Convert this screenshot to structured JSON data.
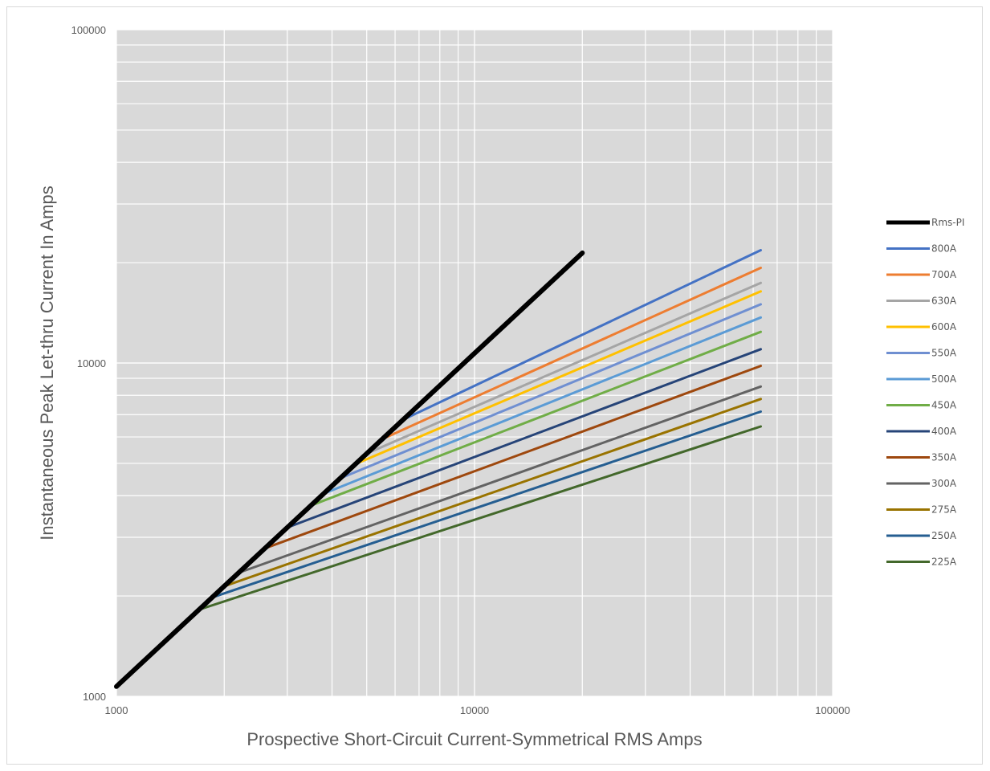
{
  "chart_data": {
    "type": "line",
    "title": "",
    "xlabel": "Prospective Short-Circuit Current-Symmetrical RMS Amps",
    "ylabel": "Instantaneous Peak Let-thru Current In Amps",
    "xscale": "log",
    "yscale": "log",
    "xlim": [
      1000,
      100000
    ],
    "ylim": [
      1000,
      100000
    ],
    "x_ticks": [
      "1000",
      "10000",
      "100000"
    ],
    "y_ticks": [
      "1000",
      "10000",
      "100000"
    ],
    "grid": true,
    "legend_position": "right",
    "plot_background": "#d9d9d9",
    "series": [
      {
        "name": "Rms-PI",
        "color": "#000000",
        "width": 6,
        "points": [
          [
            1000,
            1070
          ],
          [
            20000,
            21400
          ]
        ]
      },
      {
        "name": "800A",
        "color": "#4472c4",
        "width": 3,
        "points": [
          [
            6300,
            6750
          ],
          [
            63000,
            21800
          ]
        ]
      },
      {
        "name": "700A",
        "color": "#ed7d31",
        "width": 3,
        "points": [
          [
            5500,
            5900
          ],
          [
            63000,
            19300
          ]
        ]
      },
      {
        "name": "630A",
        "color": "#a5a5a5",
        "width": 3,
        "points": [
          [
            5000,
            5350
          ],
          [
            63000,
            17400
          ]
        ]
      },
      {
        "name": "600A",
        "color": "#ffc000",
        "width": 3,
        "points": [
          [
            4700,
            5000
          ],
          [
            63000,
            16400
          ]
        ]
      },
      {
        "name": "550A",
        "color": "#6f8fd1",
        "width": 3,
        "points": [
          [
            4200,
            4500
          ],
          [
            63000,
            15000
          ]
        ]
      },
      {
        "name": "500A",
        "color": "#5b9bd5",
        "width": 3,
        "points": [
          [
            3800,
            4060
          ],
          [
            63000,
            13700
          ]
        ]
      },
      {
        "name": "450A",
        "color": "#70ad47",
        "width": 3,
        "points": [
          [
            3500,
            3740
          ],
          [
            63000,
            12400
          ]
        ]
      },
      {
        "name": "400A",
        "color": "#264478",
        "width": 3,
        "points": [
          [
            3000,
            3210
          ],
          [
            63000,
            11000
          ]
        ]
      },
      {
        "name": "350A",
        "color": "#9e480e",
        "width": 3,
        "points": [
          [
            2600,
            2780
          ],
          [
            63000,
            9800
          ]
        ]
      },
      {
        "name": "300A",
        "color": "#636363",
        "width": 3,
        "points": [
          [
            2200,
            2350
          ],
          [
            63000,
            8500
          ]
        ]
      },
      {
        "name": "275A",
        "color": "#997300",
        "width": 3,
        "points": [
          [
            2000,
            2140
          ],
          [
            63000,
            7800
          ]
        ]
      },
      {
        "name": "250A",
        "color": "#255e91",
        "width": 3,
        "points": [
          [
            1850,
            1980
          ],
          [
            63000,
            7150
          ]
        ]
      },
      {
        "name": "225A",
        "color": "#43682b",
        "width": 3,
        "points": [
          [
            1700,
            1820
          ],
          [
            63000,
            6450
          ]
        ]
      }
    ]
  }
}
